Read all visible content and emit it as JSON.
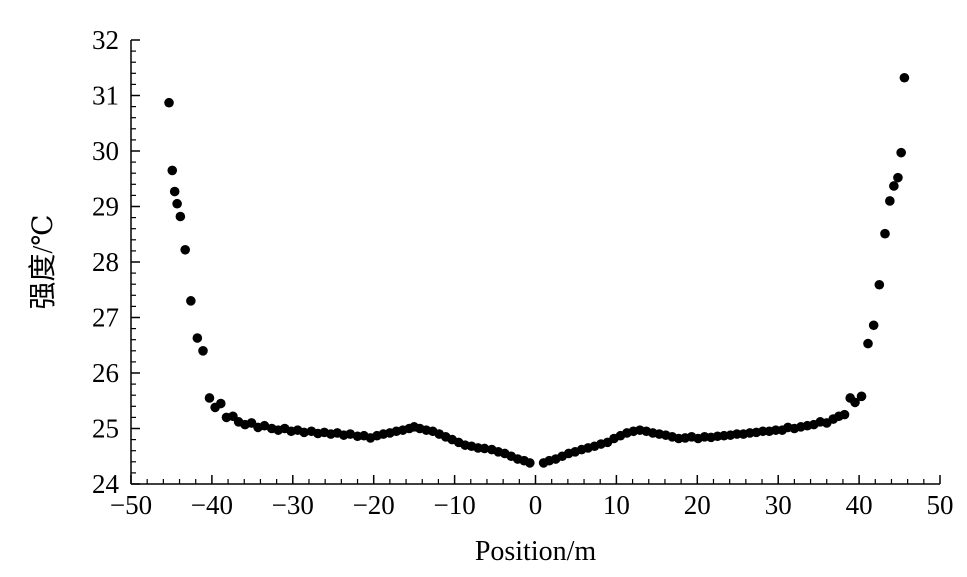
{
  "chart_data": {
    "type": "scatter",
    "xlabel": "Position/m",
    "ylabel": "强度/℃",
    "xlim": [
      -50,
      50
    ],
    "ylim": [
      24,
      32
    ],
    "x_ticks": [
      "−50",
      "−40",
      "−30",
      "−20",
      "−10",
      "0",
      "10",
      "20",
      "30",
      "40",
      "50"
    ],
    "y_ticks": [
      "24",
      "25",
      "26",
      "27",
      "28",
      "29",
      "30",
      "31",
      "32"
    ],
    "grid": false,
    "marker_color": "#000000",
    "series": [
      {
        "points": [
          [
            -45.3,
            30.87
          ],
          [
            -44.9,
            29.65
          ],
          [
            -44.6,
            29.27
          ],
          [
            -44.3,
            29.05
          ],
          [
            -43.9,
            28.82
          ],
          [
            -43.3,
            28.22
          ],
          [
            -42.6,
            27.3
          ],
          [
            -41.8,
            26.63
          ],
          [
            -41.1,
            26.4
          ],
          [
            -40.3,
            25.55
          ],
          [
            -39.6,
            25.38
          ],
          [
            -38.9,
            25.45
          ],
          [
            -38.2,
            25.2
          ],
          [
            -37.4,
            25.22
          ],
          [
            -36.7,
            25.12
          ],
          [
            -35.9,
            25.07
          ],
          [
            -35.1,
            25.1
          ],
          [
            -34.3,
            25.02
          ],
          [
            -33.5,
            25.05
          ],
          [
            -32.6,
            25.0
          ],
          [
            -31.8,
            24.97
          ],
          [
            -31.0,
            25.0
          ],
          [
            -30.2,
            24.95
          ],
          [
            -29.4,
            24.97
          ],
          [
            -28.6,
            24.93
          ],
          [
            -27.7,
            24.95
          ],
          [
            -26.9,
            24.91
          ],
          [
            -26.1,
            24.93
          ],
          [
            -25.3,
            24.9
          ],
          [
            -24.5,
            24.92
          ],
          [
            -23.7,
            24.88
          ],
          [
            -22.9,
            24.9
          ],
          [
            -22.0,
            24.86
          ],
          [
            -21.2,
            24.87
          ],
          [
            -20.4,
            24.83
          ],
          [
            -19.6,
            24.87
          ],
          [
            -18.8,
            24.9
          ],
          [
            -18.0,
            24.92
          ],
          [
            -17.2,
            24.95
          ],
          [
            -16.4,
            24.97
          ],
          [
            -15.6,
            25.0
          ],
          [
            -15.0,
            25.03
          ],
          [
            -14.3,
            25.0
          ],
          [
            -13.5,
            24.97
          ],
          [
            -12.7,
            24.95
          ],
          [
            -11.9,
            24.9
          ],
          [
            -11.1,
            24.85
          ],
          [
            -10.3,
            24.8
          ],
          [
            -9.5,
            24.75
          ],
          [
            -8.7,
            24.7
          ],
          [
            -7.9,
            24.68
          ],
          [
            -7.1,
            24.65
          ],
          [
            -6.3,
            24.64
          ],
          [
            -5.4,
            24.62
          ],
          [
            -4.6,
            24.58
          ],
          [
            -3.8,
            24.55
          ],
          [
            -3.0,
            24.5
          ],
          [
            -2.2,
            24.45
          ],
          [
            -1.4,
            24.42
          ],
          [
            -0.7,
            24.38
          ],
          [
            1.0,
            24.38
          ],
          [
            1.7,
            24.42
          ],
          [
            2.5,
            24.45
          ],
          [
            3.3,
            24.5
          ],
          [
            4.1,
            24.55
          ],
          [
            4.9,
            24.58
          ],
          [
            5.7,
            24.62
          ],
          [
            6.5,
            24.65
          ],
          [
            7.3,
            24.68
          ],
          [
            8.1,
            24.72
          ],
          [
            8.9,
            24.75
          ],
          [
            9.7,
            24.82
          ],
          [
            10.5,
            24.87
          ],
          [
            11.3,
            24.92
          ],
          [
            12.1,
            24.95
          ],
          [
            12.9,
            24.97
          ],
          [
            13.7,
            24.95
          ],
          [
            14.5,
            24.92
          ],
          [
            15.3,
            24.9
          ],
          [
            16.1,
            24.88
          ],
          [
            16.9,
            24.85
          ],
          [
            17.7,
            24.82
          ],
          [
            18.5,
            24.83
          ],
          [
            19.3,
            24.85
          ],
          [
            20.1,
            24.82
          ],
          [
            20.9,
            24.85
          ],
          [
            21.7,
            24.84
          ],
          [
            22.5,
            24.86
          ],
          [
            23.3,
            24.87
          ],
          [
            24.1,
            24.88
          ],
          [
            24.9,
            24.9
          ],
          [
            25.7,
            24.9
          ],
          [
            26.5,
            24.92
          ],
          [
            27.3,
            24.93
          ],
          [
            28.1,
            24.95
          ],
          [
            28.9,
            24.95
          ],
          [
            29.7,
            24.97
          ],
          [
            30.5,
            24.97
          ],
          [
            31.2,
            25.02
          ],
          [
            32.0,
            25.0
          ],
          [
            32.8,
            25.03
          ],
          [
            33.6,
            25.05
          ],
          [
            34.4,
            25.07
          ],
          [
            35.2,
            25.12
          ],
          [
            36.0,
            25.1
          ],
          [
            36.8,
            25.17
          ],
          [
            37.5,
            25.22
          ],
          [
            38.2,
            25.25
          ],
          [
            38.9,
            25.55
          ],
          [
            39.5,
            25.47
          ],
          [
            40.3,
            25.58
          ],
          [
            41.1,
            26.53
          ],
          [
            41.8,
            26.86
          ],
          [
            42.5,
            27.59
          ],
          [
            43.2,
            28.51
          ],
          [
            43.8,
            29.1
          ],
          [
            44.3,
            29.37
          ],
          [
            44.8,
            29.52
          ],
          [
            45.2,
            29.97
          ],
          [
            45.6,
            31.32
          ]
        ]
      }
    ]
  }
}
